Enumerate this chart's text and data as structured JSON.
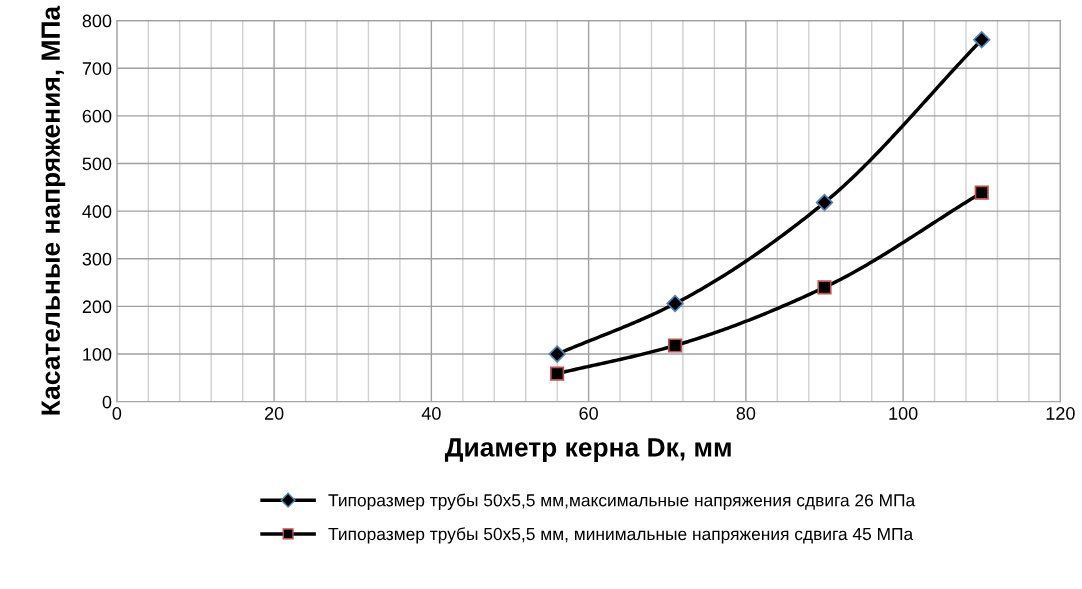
{
  "chart_data": {
    "type": "line",
    "xlabel": "Диаметр керна Dк, мм",
    "ylabel": "Касательные напряжения, МПа",
    "x": [
      56,
      71,
      90,
      110
    ],
    "series": [
      {
        "name": "Типоразмер трубы 50х5,5 мм,максимальные напряжения сдвига 26 МПа",
        "color": "#000000",
        "marker": "diamond",
        "values": [
          100,
          206,
          418,
          760
        ]
      },
      {
        "name": "Типоразмер трубы 50х5,5 мм, минимальные напряжения сдвига 45 МПа",
        "color": "#000000",
        "marker": "square",
        "values": [
          59,
          118,
          240,
          439
        ]
      }
    ],
    "xlim": [
      0,
      120
    ],
    "xticks": [
      0,
      20,
      40,
      60,
      80,
      100,
      120
    ],
    "ylim": [
      0,
      800
    ],
    "yticks": [
      0,
      100,
      200,
      300,
      400,
      500,
      600,
      700,
      800
    ],
    "grid": true,
    "legend": "bottom",
    "line_style": "solid"
  }
}
